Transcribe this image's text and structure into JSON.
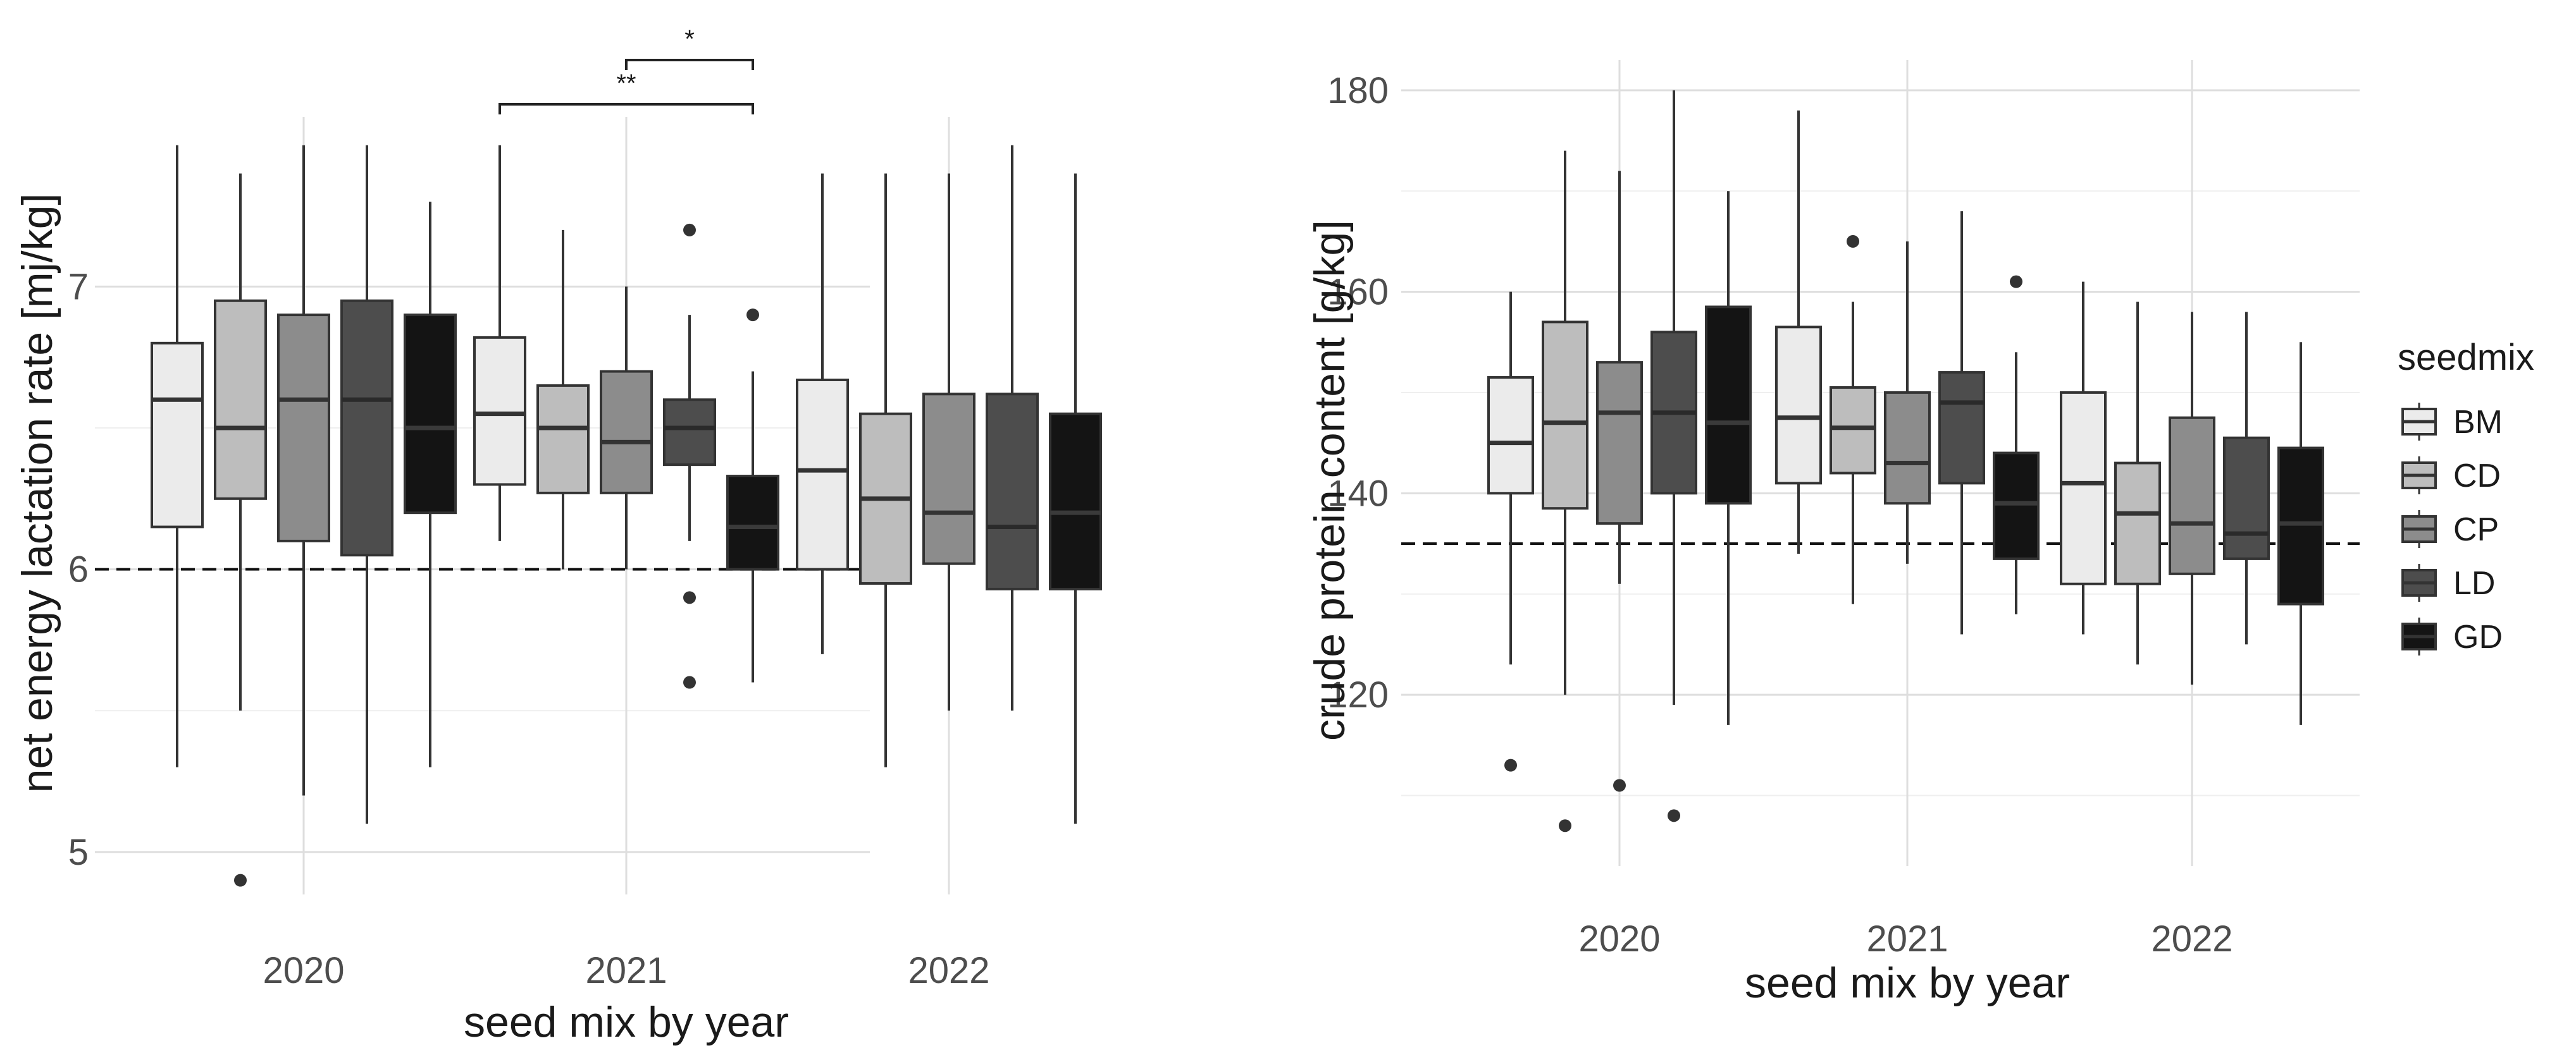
{
  "chart_data": [
    {
      "type": "boxplot",
      "title": "",
      "xlabel": "seed mix by year",
      "ylabel": "net energy lactation rate [mj/kg]",
      "ylim": [
        4.85,
        7.6
      ],
      "y_ticks": [
        5,
        6,
        7
      ],
      "y_tick_labels": [
        "5",
        "6",
        "7"
      ],
      "reference_line": 6.0,
      "categories": [
        "2020",
        "2021",
        "2022"
      ],
      "series": [
        {
          "name": "BM",
          "color": "#ebebeb",
          "boxes": [
            {
              "min": 5.3,
              "q1": 6.15,
              "median": 6.6,
              "q3": 6.8,
              "max": 7.5,
              "outliers": []
            },
            {
              "min": 6.1,
              "q1": 6.3,
              "median": 6.55,
              "q3": 6.82,
              "max": 7.5,
              "outliers": []
            },
            {
              "min": 5.7,
              "q1": 6.0,
              "median": 6.35,
              "q3": 6.67,
              "max": 7.4,
              "outliers": []
            }
          ]
        },
        {
          "name": "CD",
          "color": "#bdbdbd",
          "boxes": [
            {
              "min": 5.5,
              "q1": 6.25,
              "median": 6.5,
              "q3": 6.95,
              "max": 7.4,
              "outliers": [
                4.9
              ]
            },
            {
              "min": 6.0,
              "q1": 6.27,
              "median": 6.5,
              "q3": 6.65,
              "max": 7.2,
              "outliers": []
            },
            {
              "min": 5.3,
              "q1": 5.95,
              "median": 6.25,
              "q3": 6.55,
              "max": 7.4,
              "outliers": []
            }
          ]
        },
        {
          "name": "CP",
          "color": "#8c8c8c",
          "boxes": [
            {
              "min": 5.2,
              "q1": 6.1,
              "median": 6.6,
              "q3": 6.9,
              "max": 7.5,
              "outliers": []
            },
            {
              "min": 6.0,
              "q1": 6.27,
              "median": 6.45,
              "q3": 6.7,
              "max": 7.0,
              "outliers": []
            },
            {
              "min": 5.5,
              "q1": 6.02,
              "median": 6.2,
              "q3": 6.62,
              "max": 7.4,
              "outliers": []
            }
          ]
        },
        {
          "name": "LD",
          "color": "#4d4d4d",
          "boxes": [
            {
              "min": 5.1,
              "q1": 6.05,
              "median": 6.6,
              "q3": 6.95,
              "max": 7.5,
              "outliers": []
            },
            {
              "min": 6.1,
              "q1": 6.37,
              "median": 6.5,
              "q3": 6.6,
              "max": 6.9,
              "outliers": [
                7.2,
                5.9,
                5.6
              ]
            },
            {
              "min": 5.5,
              "q1": 5.93,
              "median": 6.15,
              "q3": 6.62,
              "max": 7.5,
              "outliers": []
            }
          ]
        },
        {
          "name": "GD",
          "color": "#141414",
          "boxes": [
            {
              "min": 5.3,
              "q1": 6.2,
              "median": 6.5,
              "q3": 6.9,
              "max": 7.3,
              "outliers": []
            },
            {
              "min": 5.6,
              "q1": 6.0,
              "median": 6.15,
              "q3": 6.33,
              "max": 6.7,
              "outliers": [
                6.9
              ]
            },
            {
              "min": 5.1,
              "q1": 5.93,
              "median": 6.2,
              "q3": 6.55,
              "max": 7.4,
              "outliers": []
            }
          ]
        }
      ],
      "significance": [
        {
          "label": "*",
          "category": "2021",
          "from": "CP",
          "to": "GD"
        },
        {
          "label": "**",
          "category": "2021",
          "from": "BM",
          "to": "GD"
        }
      ]
    },
    {
      "type": "boxplot",
      "title": "",
      "xlabel": "seed mix by year",
      "ylabel": "crude protein content [g/kg]",
      "ylim": [
        103,
        183
      ],
      "y_ticks": [
        120,
        140,
        160,
        180
      ],
      "y_tick_labels": [
        "120",
        "140",
        "160",
        "180"
      ],
      "reference_line": 135,
      "categories": [
        "2020",
        "2021",
        "2022"
      ],
      "series": [
        {
          "name": "BM",
          "color": "#ebebeb",
          "boxes": [
            {
              "min": 123,
              "q1": 140,
              "median": 145,
              "q3": 151.5,
              "max": 160,
              "outliers": [
                113
              ]
            },
            {
              "min": 134,
              "q1": 141,
              "median": 147.5,
              "q3": 156.5,
              "max": 178,
              "outliers": []
            },
            {
              "min": 126,
              "q1": 131,
              "median": 141,
              "q3": 150,
              "max": 161,
              "outliers": []
            }
          ]
        },
        {
          "name": "CD",
          "color": "#bdbdbd",
          "boxes": [
            {
              "min": 120,
              "q1": 138.5,
              "median": 147,
              "q3": 157,
              "max": 174,
              "outliers": [
                107
              ]
            },
            {
              "min": 129,
              "q1": 142,
              "median": 146.5,
              "q3": 150.5,
              "max": 159,
              "outliers": [
                165
              ]
            },
            {
              "min": 123,
              "q1": 131,
              "median": 138,
              "q3": 143,
              "max": 159,
              "outliers": []
            }
          ]
        },
        {
          "name": "CP",
          "color": "#8c8c8c",
          "boxes": [
            {
              "min": 131,
              "q1": 137,
              "median": 148,
              "q3": 153,
              "max": 172,
              "outliers": [
                111
              ]
            },
            {
              "min": 133,
              "q1": 139,
              "median": 143,
              "q3": 150,
              "max": 165,
              "outliers": []
            },
            {
              "min": 121,
              "q1": 132,
              "median": 137,
              "q3": 147.5,
              "max": 158,
              "outliers": []
            }
          ]
        },
        {
          "name": "LD",
          "color": "#4d4d4d",
          "boxes": [
            {
              "min": 119,
              "q1": 140,
              "median": 148,
              "q3": 156,
              "max": 180,
              "outliers": [
                108
              ]
            },
            {
              "min": 126,
              "q1": 141,
              "median": 149,
              "q3": 152,
              "max": 168,
              "outliers": []
            },
            {
              "min": 125,
              "q1": 133.5,
              "median": 136,
              "q3": 145.5,
              "max": 158,
              "outliers": []
            }
          ]
        },
        {
          "name": "GD",
          "color": "#141414",
          "boxes": [
            {
              "min": 117,
              "q1": 139,
              "median": 147,
              "q3": 158.5,
              "max": 170,
              "outliers": []
            },
            {
              "min": 128,
              "q1": 133.5,
              "median": 139,
              "q3": 144,
              "max": 154,
              "outliers": [
                161
              ]
            },
            {
              "min": 117,
              "q1": 129,
              "median": 137,
              "q3": 144.5,
              "max": 155,
              "outliers": []
            }
          ]
        }
      ],
      "significance": []
    }
  ],
  "legend": {
    "title": "seedmix",
    "items": [
      {
        "label": "BM",
        "color": "#ebebeb"
      },
      {
        "label": "CD",
        "color": "#bdbdbd"
      },
      {
        "label": "CP",
        "color": "#8c8c8c"
      },
      {
        "label": "LD",
        "color": "#4d4d4d"
      },
      {
        "label": "GD",
        "color": "#141414"
      }
    ]
  }
}
